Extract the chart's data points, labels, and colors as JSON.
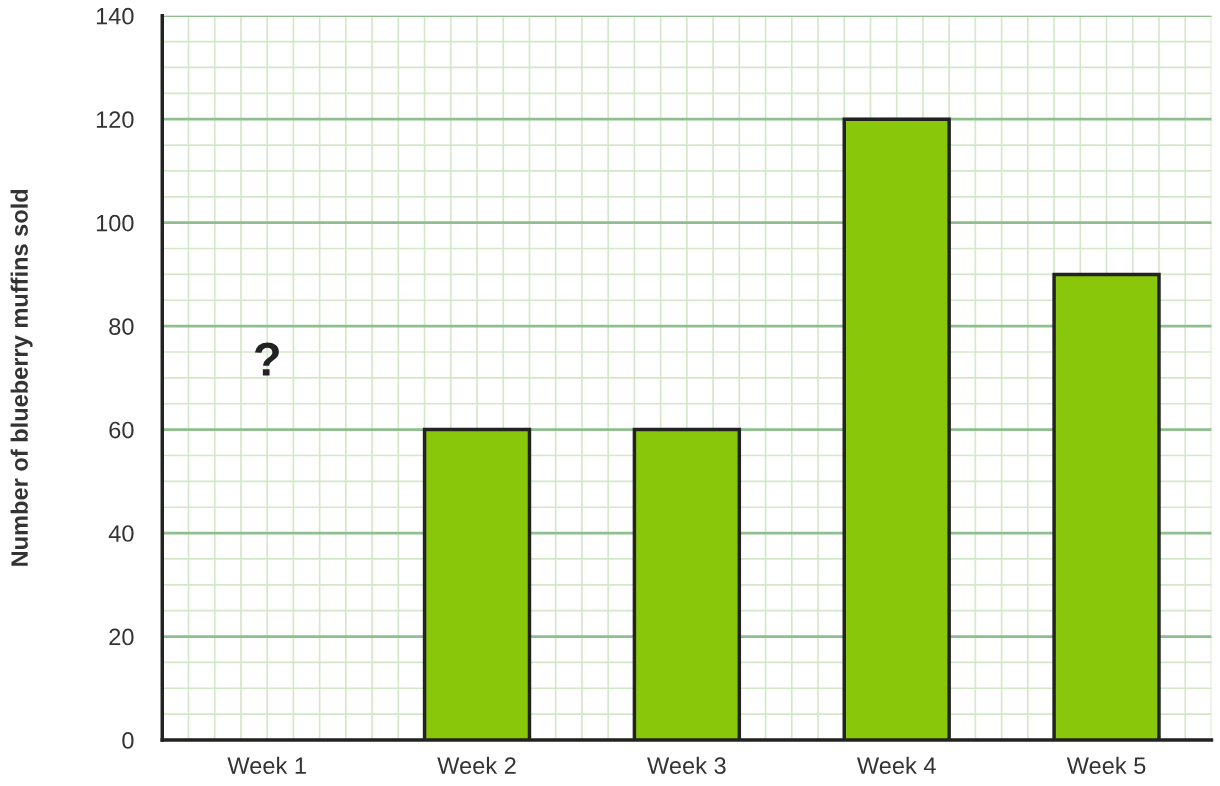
{
  "chart_data": {
    "type": "bar",
    "ylabel": "Number of blueberry muffins sold",
    "categories": [
      "Week 1",
      "Week 2",
      "Week 3",
      "Week 4",
      "Week 5"
    ],
    "values": [
      null,
      60,
      60,
      120,
      90
    ],
    "color": "#88c70a",
    "ylim": [
      0,
      140
    ],
    "yticks": [
      0,
      20,
      40,
      60,
      80,
      100,
      120,
      140
    ],
    "grid": true,
    "annotations": [
      "?"
    ]
  }
}
